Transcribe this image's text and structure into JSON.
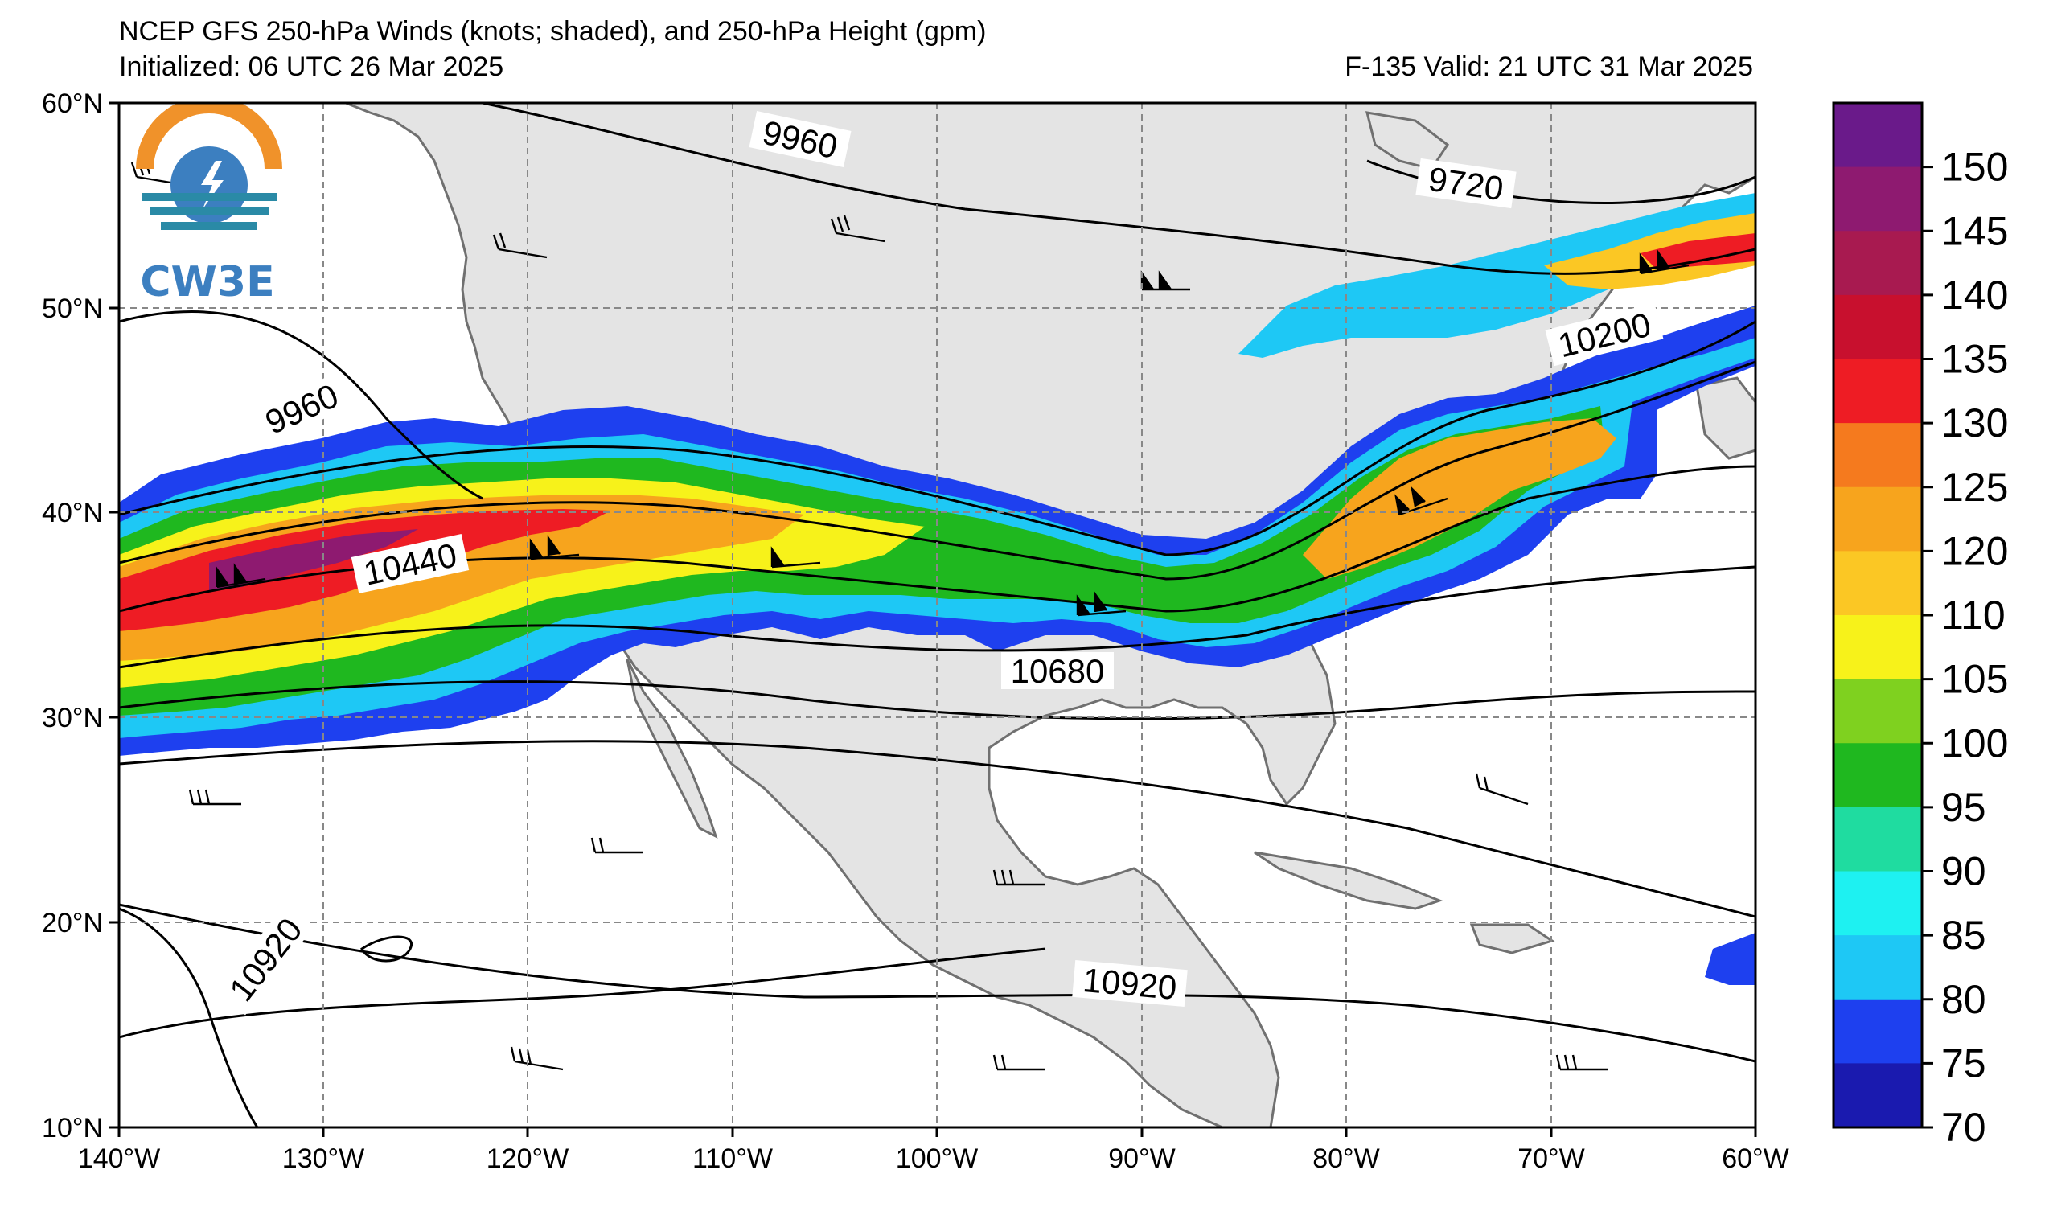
{
  "title": {
    "line1": "NCEP GFS 250-hPa Winds (knots; shaded), and 250-hPa Height (gpm)",
    "initialized": "Initialized: 06 UTC 26 Mar 2025",
    "valid": "F-135  Valid: 21 UTC 31 Mar 2025"
  },
  "logo": {
    "text": "CW3E",
    "colors": {
      "orange": "#f0922a",
      "teal": "#2a8aa6",
      "blue": "#3c7fc0"
    }
  },
  "axes": {
    "lon_labels": [
      "140°W",
      "130°W",
      "120°W",
      "110°W",
      "100°W",
      "90°W",
      "80°W",
      "70°W",
      "60°W"
    ],
    "lat_labels": [
      "60°N",
      "50°N",
      "40°N",
      "30°N",
      "20°N",
      "10°N"
    ]
  },
  "colorbar": {
    "ticks": [
      "150",
      "145",
      "140",
      "135",
      "130",
      "125",
      "120",
      "110",
      "105",
      "100",
      "95",
      "90",
      "85",
      "80",
      "75",
      "70"
    ],
    "colors": [
      "#6a1a8a",
      "#8e1a70",
      "#a81a50",
      "#c8102e",
      "#ee1c24",
      "#f57a1e",
      "#f7a41d",
      "#fbc724",
      "#f7f21a",
      "#7fd11f",
      "#1fb81f",
      "#1fdca0",
      "#1ef1f1",
      "#1ec8f5",
      "#1e40ef",
      "#1a1aaf"
    ]
  },
  "contour_labels": {
    "c1": "9960",
    "c2": "9720",
    "c3": "9960",
    "c4": "10200",
    "c5": "10440",
    "c6": "10680",
    "c7": "10920",
    "c8": "10920"
  }
}
